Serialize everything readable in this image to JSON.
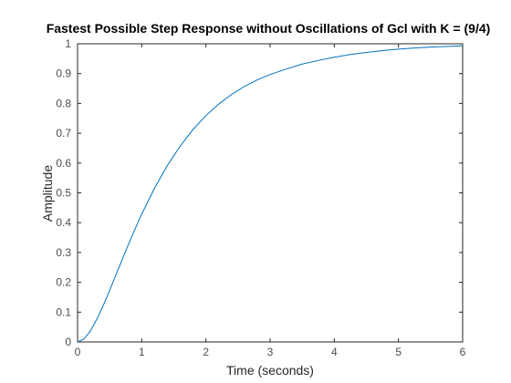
{
  "chart_data": {
    "type": "line",
    "title": "Fastest Possible Step Response without Oscillations of Gcl with K = (9/4)",
    "xlabel": "Time (seconds)",
    "ylabel": "Amplitude",
    "xlim": [
      0,
      6
    ],
    "ylim": [
      0,
      1
    ],
    "xticks": [
      "0",
      "1",
      "2",
      "3",
      "4",
      "5",
      "6"
    ],
    "yticks": [
      "0",
      "0.1",
      "0.2",
      "0.3",
      "0.4",
      "0.5",
      "0.6",
      "0.7",
      "0.8",
      "0.9",
      "1"
    ],
    "grid": false,
    "series": [
      {
        "color": "#0072bd",
        "x": [
          0,
          0.1,
          0.2,
          0.3,
          0.4,
          0.5,
          0.6,
          0.7,
          0.8,
          0.9,
          1.0,
          1.2,
          1.4,
          1.6,
          1.8,
          2.0,
          2.2,
          2.4,
          2.6,
          2.8,
          3.0,
          3.25,
          3.5,
          3.75,
          4.0,
          4.25,
          4.5,
          4.75,
          5.0,
          5.25,
          5.5,
          5.75,
          6.0
        ],
        "y": [
          0,
          0.01,
          0.037,
          0.076,
          0.122,
          0.173,
          0.226,
          0.279,
          0.331,
          0.381,
          0.429,
          0.516,
          0.592,
          0.657,
          0.713,
          0.759,
          0.798,
          0.83,
          0.857,
          0.879,
          0.897,
          0.915,
          0.932,
          0.944,
          0.955,
          0.964,
          0.971,
          0.977,
          0.982,
          0.986,
          0.989,
          0.991,
          0.993
        ]
      }
    ]
  }
}
